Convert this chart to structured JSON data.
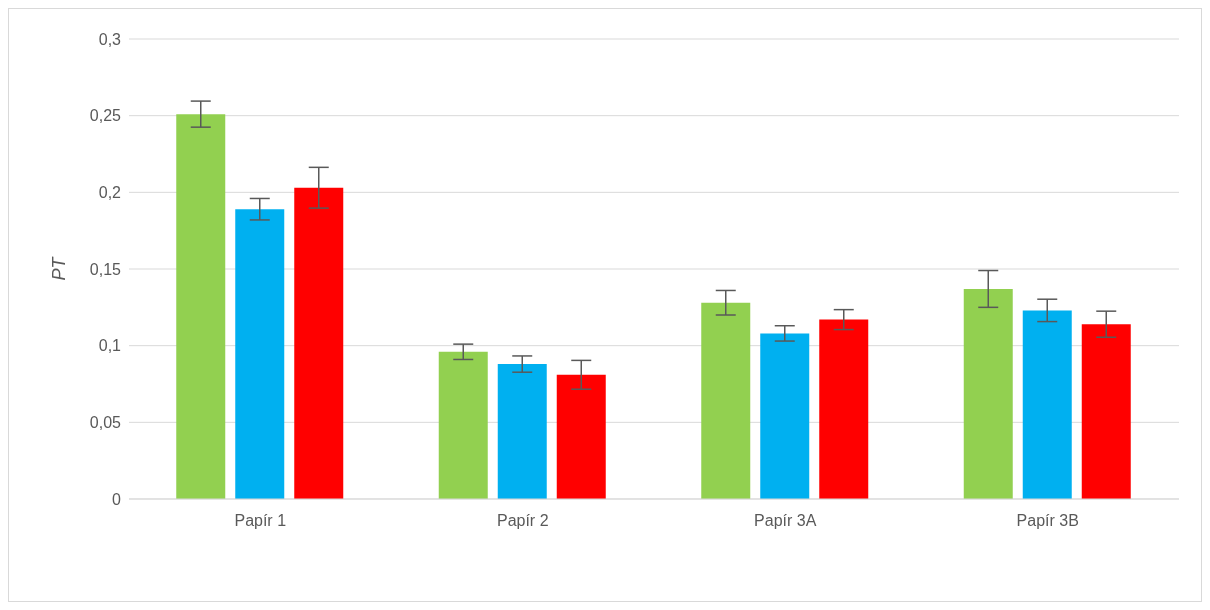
{
  "chart_data": {
    "type": "bar",
    "ylabel": "PT",
    "categories": [
      "Papír 1",
      "Papír 2",
      "Papír 3A",
      "Papír 3B"
    ],
    "series": [
      {
        "color": "#92d050",
        "values": [
          0.251,
          0.096,
          0.128,
          0.137
        ],
        "errors": [
          0.0085,
          0.005,
          0.008,
          0.012
        ]
      },
      {
        "color": "#00b0f0",
        "values": [
          0.189,
          0.088,
          0.108,
          0.123
        ],
        "errors": [
          0.007,
          0.0053,
          0.005,
          0.0073
        ]
      },
      {
        "color": "#ff0000",
        "values": [
          0.203,
          0.081,
          0.117,
          0.114
        ],
        "errors": [
          0.0133,
          0.0094,
          0.0065,
          0.0085
        ]
      }
    ],
    "ylim": [
      0,
      0.3
    ],
    "yticks": [
      {
        "value": 0,
        "label": "0"
      },
      {
        "value": 0.05,
        "label": "0,05"
      },
      {
        "value": 0.1,
        "label": "0,1"
      },
      {
        "value": 0.15,
        "label": "0,15"
      },
      {
        "value": 0.2,
        "label": "0,2"
      },
      {
        "value": 0.25,
        "label": "0,25"
      },
      {
        "value": 0.3,
        "label": "0,3"
      }
    ],
    "grid": "y"
  }
}
